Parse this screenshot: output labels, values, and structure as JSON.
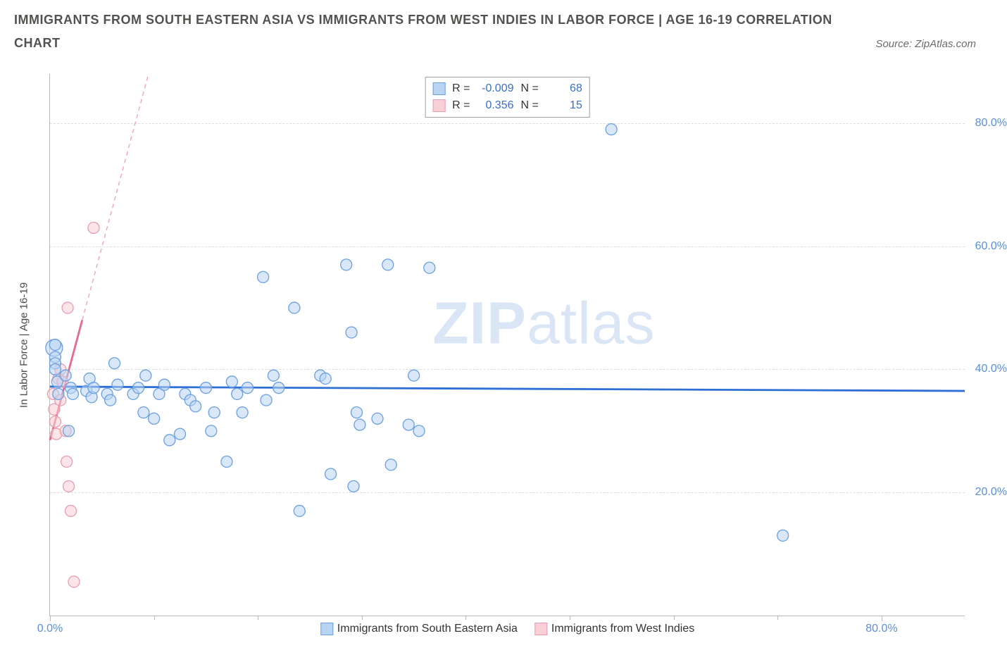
{
  "title": "IMMIGRANTS FROM SOUTH EASTERN ASIA VS IMMIGRANTS FROM WEST INDIES IN LABOR FORCE | AGE 16-19 CORRELATION",
  "chart_word": "CHART",
  "source": "Source: ZipAtlas.com",
  "y_axis_label": "In Labor Force | Age 16-19",
  "watermark_a": "ZIP",
  "watermark_b": "atlas",
  "chart": {
    "type": "scatter",
    "xlim": [
      0,
      88
    ],
    "ylim": [
      0,
      88
    ],
    "x_ticks_major": [
      0,
      80
    ],
    "x_ticks_minor": [
      10,
      20,
      30,
      40,
      50,
      60,
      70
    ],
    "y_ticks": [
      20,
      40,
      60,
      80
    ],
    "y_tick_labels": [
      "20.0%",
      "40.0%",
      "60.0%",
      "80.0%"
    ],
    "x_tick_labels": [
      "0.0%",
      "80.0%"
    ],
    "background_color": "#ffffff",
    "grid_color": "#dddddd",
    "axis_color": "#b8b8b8",
    "tick_label_color": "#5b8fd6",
    "marker_radius": 8
  },
  "series_blue": {
    "name": "Immigrants from South Eastern Asia",
    "fill": "#b9d4f2",
    "stroke": "#6aa0e0",
    "fill_opacity": 0.55,
    "trend_color": "#2e6fd6",
    "trend_width": 2.8,
    "trend": {
      "y_at_x0": 37.2,
      "y_at_xmax": 36.5
    },
    "R": "-0.009",
    "N": "68",
    "points": [
      [
        0.5,
        44
      ],
      [
        0.5,
        42
      ],
      [
        0.5,
        41
      ],
      [
        0.5,
        40
      ],
      [
        0.7,
        38
      ],
      [
        0.8,
        36
      ],
      [
        1.5,
        39
      ],
      [
        1.8,
        30
      ],
      [
        2.0,
        37
      ],
      [
        2.2,
        36
      ],
      [
        3.5,
        36.5
      ],
      [
        3.8,
        38.5
      ],
      [
        4.0,
        35.5
      ],
      [
        4.2,
        37
      ],
      [
        5.5,
        36
      ],
      [
        5.8,
        35
      ],
      [
        6.2,
        41
      ],
      [
        6.5,
        37.5
      ],
      [
        8.0,
        36
      ],
      [
        8.5,
        37
      ],
      [
        9.0,
        33
      ],
      [
        9.2,
        39
      ],
      [
        10.0,
        32
      ],
      [
        10.5,
        36
      ],
      [
        11.0,
        37.5
      ],
      [
        11.5,
        28.5
      ],
      [
        12.5,
        29.5
      ],
      [
        13.0,
        36
      ],
      [
        13.5,
        35
      ],
      [
        14.0,
        34
      ],
      [
        15.0,
        37
      ],
      [
        15.5,
        30
      ],
      [
        15.8,
        33
      ],
      [
        17.0,
        25
      ],
      [
        17.5,
        38
      ],
      [
        18.0,
        36
      ],
      [
        18.5,
        33
      ],
      [
        19.0,
        37
      ],
      [
        20.5,
        55
      ],
      [
        20.8,
        35
      ],
      [
        21.5,
        39
      ],
      [
        22.0,
        37
      ],
      [
        23.5,
        50
      ],
      [
        24.0,
        17
      ],
      [
        26.0,
        39
      ],
      [
        26.5,
        38.5
      ],
      [
        27.0,
        23
      ],
      [
        28.5,
        57
      ],
      [
        29.0,
        46
      ],
      [
        29.2,
        21
      ],
      [
        29.5,
        33
      ],
      [
        29.8,
        31
      ],
      [
        31.5,
        32
      ],
      [
        32.5,
        57
      ],
      [
        32.8,
        24.5
      ],
      [
        34.5,
        31
      ],
      [
        35.0,
        39
      ],
      [
        35.5,
        30
      ],
      [
        36.5,
        56.5
      ],
      [
        54.0,
        79
      ],
      [
        70.5,
        13
      ]
    ],
    "extra_large_points": [
      [
        0.4,
        43.5,
        12
      ]
    ]
  },
  "series_pink": {
    "name": "Immigrants from West Indies",
    "fill": "#f8cfd7",
    "stroke": "#ea9cb0",
    "fill_opacity": 0.55,
    "trend_solid_color": "#e86a8a",
    "trend_solid_width": 2.8,
    "trend_dashed_color": "#f0a7b8",
    "trend_dashed_width": 1.4,
    "trend_solid": {
      "x0": 0,
      "y0": 28.5,
      "x1": 3.1,
      "y1": 48
    },
    "trend_dashed": {
      "x0": 3.1,
      "y0": 48,
      "x1": 12.5,
      "y1": 107
    },
    "R": "0.356",
    "N": "15",
    "points": [
      [
        0.3,
        36
      ],
      [
        0.4,
        33.5
      ],
      [
        0.5,
        31.5
      ],
      [
        0.6,
        29.5
      ],
      [
        0.8,
        38.5
      ],
      [
        1.0,
        35
      ],
      [
        1.0,
        40
      ],
      [
        1.2,
        38
      ],
      [
        1.5,
        30
      ],
      [
        1.6,
        25
      ],
      [
        1.8,
        21
      ],
      [
        2.0,
        17
      ],
      [
        2.3,
        5.5
      ],
      [
        1.7,
        50
      ],
      [
        4.2,
        63
      ]
    ]
  },
  "legend_top": {
    "r_label": "R =",
    "n_label": "N ="
  },
  "legend_bottom": {
    "series1": "Immigrants from South Eastern Asia",
    "series2": "Immigrants from West Indies"
  }
}
